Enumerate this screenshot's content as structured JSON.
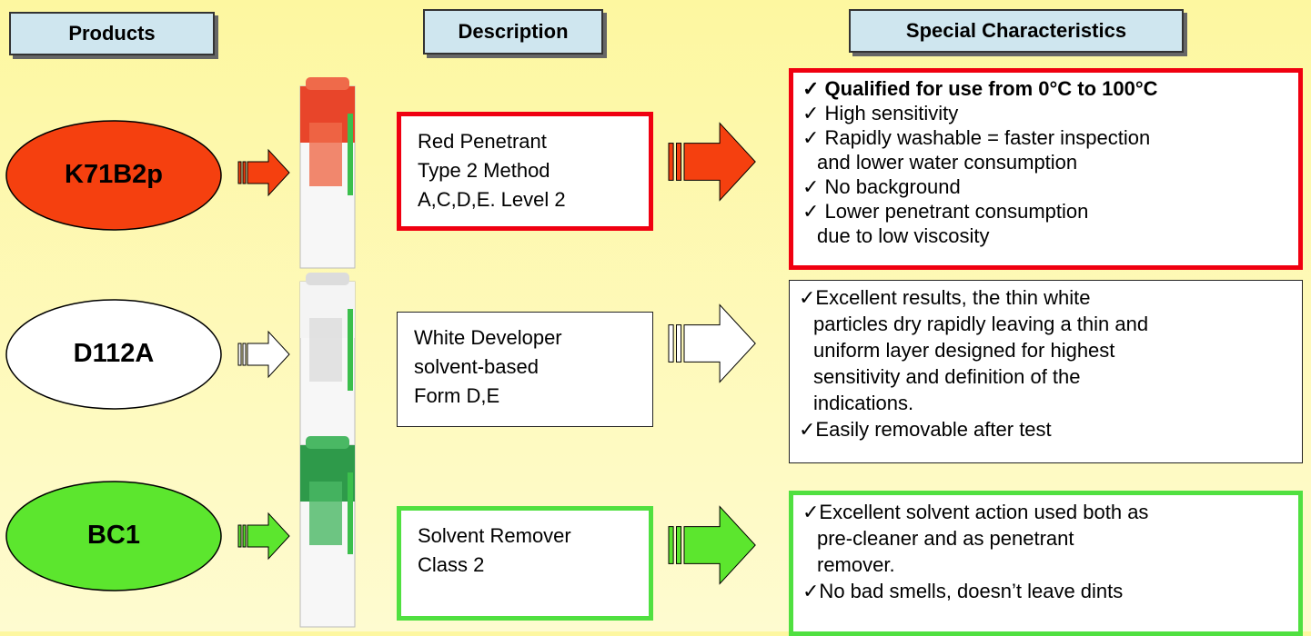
{
  "headers": [
    "Products",
    "Description",
    "Special Characteristics"
  ],
  "rows": [
    {
      "product": "K71B2p",
      "description": [
        "Red Penetrant",
        "Type 2 Method",
        "A,C,D,E. Level 2"
      ],
      "characteristics": [
        [
          "✓ Qualified for use from 0°C to 100°C"
        ],
        [
          "✓ High sensitivity"
        ],
        [
          "✓ Rapidly washable = faster inspection",
          "and lower water consumption"
        ],
        [
          "✓ No background"
        ],
        [
          "✓ Lower penetrant consumption",
          "due to low viscosity"
        ]
      ]
    },
    {
      "product": "D112A",
      "description": [
        "White Developer",
        "solvent-based",
        "Form D,E"
      ],
      "characteristics": [
        [
          "✓Excellent results, the thin white",
          "particles dry rapidly leaving a thin and",
          "uniform layer designed for highest",
          "sensitivity and definition of the",
          "indications."
        ],
        [
          "✓Easily removable after test"
        ]
      ]
    },
    {
      "product": "BC1",
      "description": [
        "Solvent Remover",
        "Class 2"
      ],
      "characteristics": [
        [
          "✓Excellent solvent action used both as",
          "pre-cleaner and as penetrant",
          "remover."
        ],
        [
          "✓No bad smells, doesn’t leave dints"
        ]
      ]
    }
  ]
}
